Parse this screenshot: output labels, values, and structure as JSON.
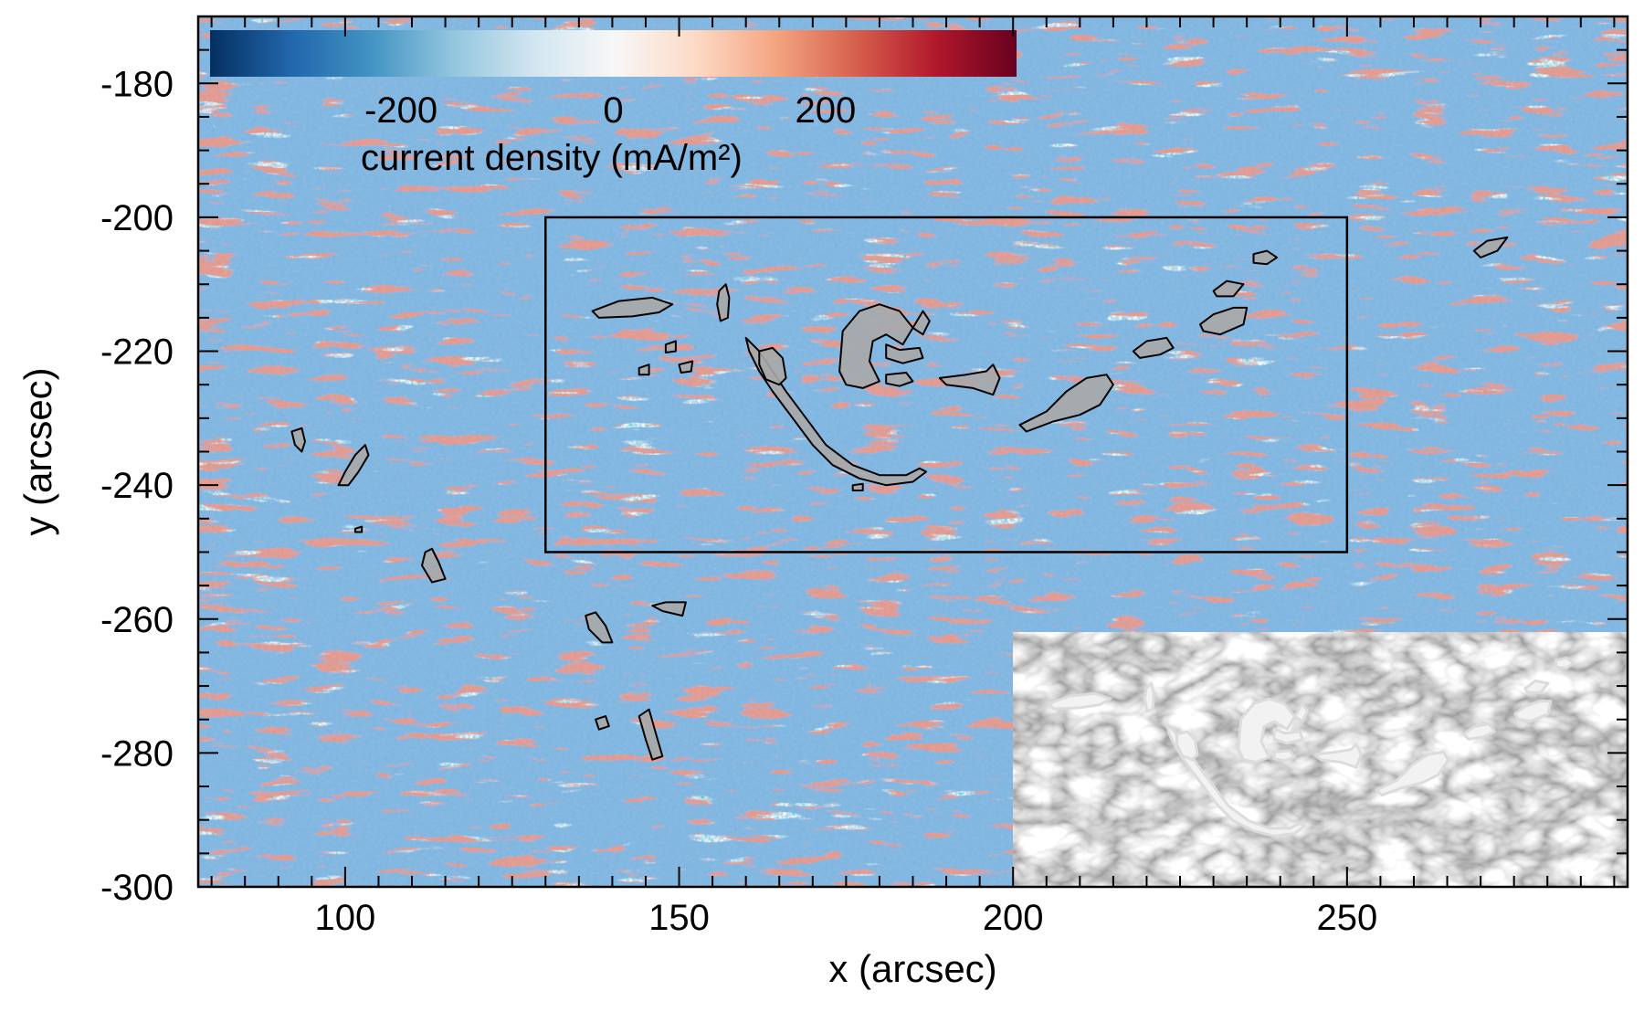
{
  "chart_data": {
    "type": "heatmap",
    "title": "",
    "xlabel": "x (arcsec)",
    "ylabel": "y (arcsec)",
    "xlim": [
      78,
      292
    ],
    "ylim": [
      -300,
      -170
    ],
    "x_ticks": [
      100,
      150,
      200,
      250
    ],
    "y_ticks": [
      -300,
      -280,
      -260,
      -240,
      -220,
      -200,
      -180
    ],
    "x_minor_step": 5,
    "y_minor_step": 5,
    "grid": false,
    "colorbar": {
      "label": "current density (mA/m²)",
      "range": [
        -380,
        380
      ],
      "ticks": [
        -200,
        0,
        200
      ],
      "colormap": "RdBu_r",
      "colors": [
        "#053061",
        "#2166ac",
        "#4393c3",
        "#92c5de",
        "#d1e5f0",
        "#f7f7f7",
        "#fddbc7",
        "#f4a582",
        "#d6604d",
        "#b2182b",
        "#67001f"
      ],
      "placement": "top-left"
    },
    "region_box": {
      "x": [
        130,
        250
      ],
      "y": [
        -250,
        -200
      ]
    },
    "contour_style": {
      "fill": "#a9a9a9",
      "stroke": "#000000"
    },
    "contours": [
      {
        "name": "c1",
        "points": [
          [
            137,
            -214
          ],
          [
            141,
            -212.5
          ],
          [
            146,
            -212
          ],
          [
            149,
            -213
          ],
          [
            147,
            -214.2
          ],
          [
            143,
            -214.8
          ],
          [
            138,
            -215
          ]
        ]
      },
      {
        "name": "c2",
        "points": [
          [
            156,
            -211
          ],
          [
            157,
            -210
          ],
          [
            157.5,
            -212
          ],
          [
            157.3,
            -215
          ],
          [
            156.2,
            -215.5
          ],
          [
            155.7,
            -213
          ]
        ]
      },
      {
        "name": "c3",
        "points": [
          [
            160,
            -218
          ],
          [
            162,
            -220
          ],
          [
            164,
            -223
          ],
          [
            166,
            -226
          ],
          [
            169,
            -230
          ],
          [
            172,
            -234
          ],
          [
            176,
            -237
          ],
          [
            180,
            -238.5
          ],
          [
            184,
            -238.5
          ],
          [
            186,
            -237.5
          ],
          [
            187,
            -238
          ],
          [
            185,
            -239.5
          ],
          [
            181,
            -240
          ],
          [
            177,
            -239
          ],
          [
            173,
            -237
          ],
          [
            170,
            -234
          ],
          [
            167,
            -230
          ],
          [
            164,
            -226
          ],
          [
            162,
            -223
          ],
          [
            160.5,
            -220
          ]
        ]
      },
      {
        "name": "c4",
        "points": [
          [
            162,
            -220
          ],
          [
            164,
            -219.5
          ],
          [
            165.5,
            -221
          ],
          [
            166,
            -224
          ],
          [
            165,
            -225
          ],
          [
            163,
            -224.2
          ],
          [
            162,
            -222
          ]
        ]
      },
      {
        "name": "c5",
        "points": [
          [
            174,
            -223
          ],
          [
            174.5,
            -217
          ],
          [
            177,
            -214
          ],
          [
            180,
            -213
          ],
          [
            183,
            -214
          ],
          [
            185,
            -216.5
          ],
          [
            183.5,
            -219
          ],
          [
            181,
            -217.5
          ],
          [
            179,
            -218.5
          ],
          [
            178.5,
            -221.5
          ],
          [
            180,
            -224.5
          ],
          [
            177.5,
            -225.5
          ],
          [
            175,
            -225
          ]
        ]
      },
      {
        "name": "c6",
        "points": [
          [
            181,
            -219
          ],
          [
            183,
            -219.8
          ],
          [
            186,
            -219.5
          ],
          [
            186.5,
            -221
          ],
          [
            183.5,
            -221.8
          ],
          [
            181,
            -221
          ]
        ]
      },
      {
        "name": "c7",
        "points": [
          [
            185,
            -216.5
          ],
          [
            186.5,
            -214
          ],
          [
            187.5,
            -215.5
          ],
          [
            186.5,
            -217.5
          ]
        ]
      },
      {
        "name": "c8",
        "points": [
          [
            181,
            -223.5
          ],
          [
            184,
            -223.2
          ],
          [
            185,
            -224.5
          ],
          [
            183,
            -225.2
          ],
          [
            181,
            -224.8
          ]
        ]
      },
      {
        "name": "c9",
        "points": [
          [
            189,
            -224
          ],
          [
            193,
            -223.5
          ],
          [
            196,
            -223
          ],
          [
            197,
            -222
          ],
          [
            198,
            -224
          ],
          [
            197,
            -226.5
          ],
          [
            194,
            -225.5
          ],
          [
            190,
            -225
          ]
        ]
      },
      {
        "name": "c10",
        "points": [
          [
            201,
            -231
          ],
          [
            205,
            -229
          ],
          [
            208,
            -226
          ],
          [
            211,
            -224
          ],
          [
            214,
            -223.5
          ],
          [
            215,
            -225
          ],
          [
            213,
            -228
          ],
          [
            210,
            -229.5
          ],
          [
            206,
            -230.5
          ],
          [
            202,
            -232
          ]
        ]
      },
      {
        "name": "c11",
        "points": [
          [
            218,
            -220
          ],
          [
            220,
            -218.5
          ],
          [
            223,
            -218
          ],
          [
            224,
            -219.5
          ],
          [
            222,
            -220.5
          ],
          [
            219,
            -221
          ]
        ]
      },
      {
        "name": "c12",
        "points": [
          [
            228,
            -216
          ],
          [
            230,
            -214.5
          ],
          [
            233,
            -213.5
          ],
          [
            235,
            -213.5
          ],
          [
            234.5,
            -216
          ],
          [
            231,
            -217.5
          ],
          [
            228.5,
            -217
          ]
        ]
      },
      {
        "name": "c13",
        "points": [
          [
            230,
            -211
          ],
          [
            232,
            -209.5
          ],
          [
            234.5,
            -210
          ],
          [
            233,
            -211.8
          ],
          [
            230.5,
            -211.8
          ]
        ]
      },
      {
        "name": "c14",
        "points": [
          [
            236,
            -205.5
          ],
          [
            238,
            -205
          ],
          [
            239.5,
            -206
          ],
          [
            238,
            -207
          ],
          [
            236,
            -206.8
          ]
        ]
      },
      {
        "name": "c15",
        "points": [
          [
            176,
            -240
          ],
          [
            177.5,
            -239.8
          ],
          [
            177.5,
            -240.8
          ],
          [
            176,
            -240.8
          ]
        ]
      },
      {
        "name": "c16",
        "points": [
          [
            148,
            -219
          ],
          [
            149.5,
            -218.5
          ],
          [
            149.5,
            -220
          ],
          [
            148,
            -220.2
          ]
        ]
      },
      {
        "name": "c17",
        "points": [
          [
            150,
            -222
          ],
          [
            152,
            -221.5
          ],
          [
            151.8,
            -223
          ],
          [
            150.3,
            -223.2
          ]
        ]
      },
      {
        "name": "c18",
        "points": [
          [
            144,
            -222.5
          ],
          [
            145.5,
            -222
          ],
          [
            145.5,
            -223.5
          ],
          [
            144,
            -223.5
          ]
        ]
      },
      {
        "name": "c19",
        "points": [
          [
            269,
            -205
          ],
          [
            271,
            -203.5
          ],
          [
            274,
            -203
          ],
          [
            272.5,
            -205
          ],
          [
            270,
            -206
          ]
        ]
      },
      {
        "name": "c20",
        "points": [
          [
            92,
            -232
          ],
          [
            93.5,
            -231.5
          ],
          [
            94,
            -233.5
          ],
          [
            93.5,
            -235
          ],
          [
            92.5,
            -234
          ]
        ]
      },
      {
        "name": "c21",
        "points": [
          [
            99,
            -240
          ],
          [
            100,
            -238
          ],
          [
            101.5,
            -235.5
          ],
          [
            103,
            -234
          ],
          [
            103.5,
            -235.5
          ],
          [
            102,
            -238
          ],
          [
            100.5,
            -240
          ]
        ]
      },
      {
        "name": "c22",
        "points": [
          [
            112,
            -250
          ],
          [
            113,
            -249.5
          ],
          [
            114,
            -251.5
          ],
          [
            115,
            -254
          ],
          [
            113,
            -254.5
          ],
          [
            111.5,
            -252
          ]
        ]
      },
      {
        "name": "c23",
        "points": [
          [
            101.5,
            -246.5
          ],
          [
            102.5,
            -246.2
          ],
          [
            102.5,
            -247
          ],
          [
            101.5,
            -247
          ]
        ]
      },
      {
        "name": "c24",
        "points": [
          [
            136,
            -259.5
          ],
          [
            137.5,
            -259
          ],
          [
            139,
            -261
          ],
          [
            140,
            -263.5
          ],
          [
            138.5,
            -263.5
          ],
          [
            136.5,
            -261.5
          ]
        ]
      },
      {
        "name": "c25",
        "points": [
          [
            146,
            -258
          ],
          [
            148,
            -257.5
          ],
          [
            151,
            -257.5
          ],
          [
            150.5,
            -259.5
          ],
          [
            147.5,
            -258.8
          ]
        ]
      },
      {
        "name": "c26",
        "points": [
          [
            137.5,
            -275
          ],
          [
            139,
            -274.5
          ],
          [
            139.5,
            -276
          ],
          [
            138,
            -276.5
          ]
        ]
      },
      {
        "name": "c27",
        "points": [
          [
            144,
            -274.5
          ],
          [
            145.5,
            -273.5
          ],
          [
            146.5,
            -277
          ],
          [
            147.5,
            -280.5
          ],
          [
            146,
            -281
          ],
          [
            145,
            -278
          ]
        ]
      }
    ],
    "inset": {
      "type": "grayscale-image",
      "placement": "bottom-right",
      "x": [
        200,
        292
      ],
      "y": [
        -300,
        -262
      ]
    }
  }
}
